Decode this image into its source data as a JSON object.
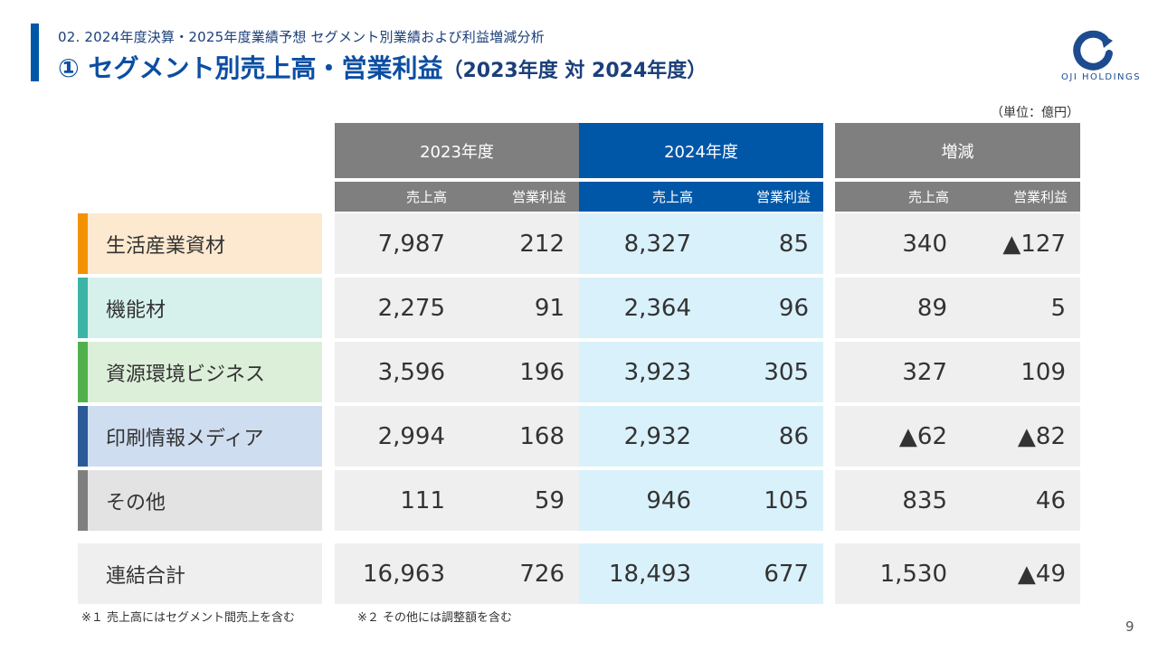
{
  "header": {
    "subtitle": "02. 2024年度決算・2025年度業績予想 セグメント別業績および利益増減分析",
    "title_main": "① セグメント別売上高・営業利益",
    "title_paren": "（2023年度 対 2024年度）"
  },
  "logo": {
    "text": "OJI HOLDINGS"
  },
  "unit": "（単位：億円）",
  "columns": {
    "groups": [
      "2023年度",
      "2024年度",
      "増減"
    ],
    "sub": [
      "売上高",
      "営業利益",
      "売上高",
      "営業利益",
      "売上高",
      "営業利益"
    ]
  },
  "rows": [
    {
      "label": "生活産業資材",
      "v": [
        "7,987",
        "212",
        "8,327",
        "85",
        "340",
        "▲127"
      ]
    },
    {
      "label": "機能材",
      "v": [
        "2,275",
        "91",
        "2,364",
        "96",
        "89",
        "5"
      ]
    },
    {
      "label": "資源環境ビジネス",
      "v": [
        "3,596",
        "196",
        "3,923",
        "305",
        "327",
        "109"
      ]
    },
    {
      "label": "印刷情報メディア",
      "v": [
        "2,994",
        "168",
        "2,932",
        "86",
        "▲62",
        "▲82"
      ]
    },
    {
      "label": "その他",
      "v": [
        "111",
        "59",
        "946",
        "105",
        "835",
        "46"
      ]
    }
  ],
  "total": {
    "label": "連結合計",
    "v": [
      "16,963",
      "726",
      "18,493",
      "677",
      "1,530",
      "▲49"
    ]
  },
  "notes": [
    "※１ 売上高にはセグメント間売上を含む",
    "※２ その他には調整額を含む"
  ],
  "page_number": "9",
  "colors": {
    "accent": "#0057a8",
    "header_gray": "#7f7f7f",
    "segments": [
      {
        "stripe": "#f39200",
        "bg": "#fde9cf"
      },
      {
        "stripe": "#3cb5a5",
        "bg": "#d6f1ec"
      },
      {
        "stripe": "#52b04b",
        "bg": "#dcefd9"
      },
      {
        "stripe": "#2c5a98",
        "bg": "#cfddf0"
      },
      {
        "stripe": "#7f7f7f",
        "bg": "#e3e3e3"
      }
    ]
  }
}
